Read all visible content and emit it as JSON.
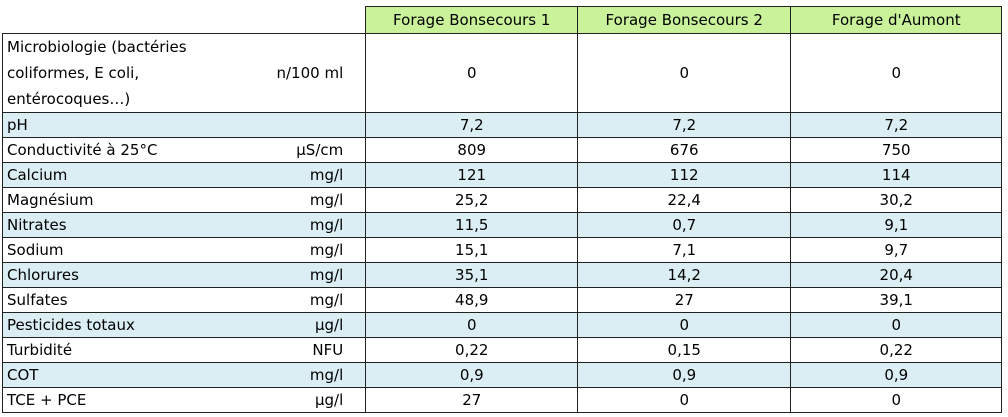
{
  "columns": [
    "Forage Bonsecours 1",
    "Forage Bonsecours 2",
    "Forage d'Aumont"
  ],
  "rows": [
    {
      "param_lines": [
        "Microbiologie (bactéries",
        "coliformes, E coli,",
        "entérocoques…)"
      ],
      "unit": "n/100 ml",
      "values": [
        "0",
        "0",
        "0"
      ]
    },
    {
      "param": "pH",
      "unit": "",
      "values": [
        "7,2",
        "7,2",
        "7,2"
      ]
    },
    {
      "param": "Conductivité à 25°C",
      "unit": "µS/cm",
      "values": [
        "809",
        "676",
        "750"
      ]
    },
    {
      "param": "Calcium",
      "unit": "mg/l",
      "values": [
        "121",
        "112",
        "114"
      ]
    },
    {
      "param": "Magnésium",
      "unit": "mg/l",
      "values": [
        "25,2",
        "22,4",
        "30,2"
      ]
    },
    {
      "param": "Nitrates",
      "unit": "mg/l",
      "values": [
        "11,5",
        "0,7",
        "9,1"
      ]
    },
    {
      "param": "Sodium",
      "unit": "mg/l",
      "values": [
        "15,1",
        "7,1",
        "9,7"
      ]
    },
    {
      "param": "Chlorures",
      "unit": "mg/l",
      "values": [
        "35,1",
        "14,2",
        "20,4"
      ]
    },
    {
      "param": "Sulfates",
      "unit": "mg/l",
      "values": [
        "48,9",
        "27",
        "39,1"
      ]
    },
    {
      "param": "Pesticides totaux",
      "unit": "µg/l",
      "values": [
        "0",
        "0",
        "0"
      ]
    },
    {
      "param": "Turbidité",
      "unit": "NFU",
      "values": [
        "0,22",
        "0,15",
        "0,22"
      ]
    },
    {
      "param": "COT",
      "unit": "mg/l",
      "values": [
        "0,9",
        "0,9",
        "0,9"
      ]
    },
    {
      "param": "TCE + PCE",
      "unit": "µg/l",
      "values": [
        "27",
        "0",
        "0"
      ]
    }
  ]
}
